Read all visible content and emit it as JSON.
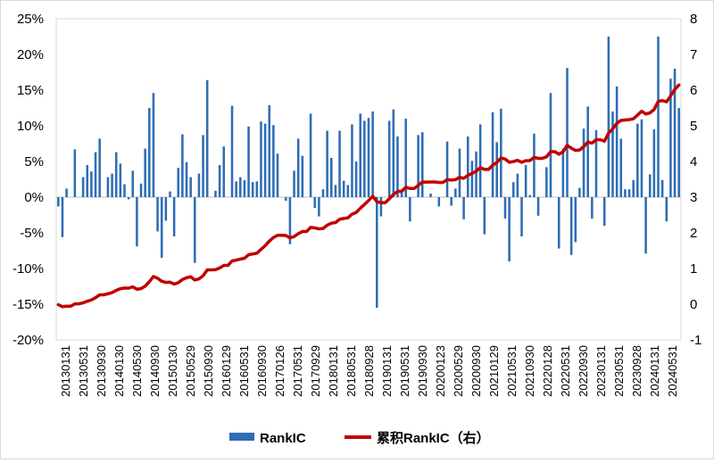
{
  "chart_data": {
    "type": "bar+line",
    "left_axis": {
      "range": [
        -0.2,
        0.25
      ],
      "ticks": [
        "25%",
        "20%",
        "15%",
        "10%",
        "5%",
        "0%",
        "-5%",
        "-10%",
        "-15%",
        "-20%"
      ]
    },
    "right_axis": {
      "range": [
        -1,
        8
      ],
      "ticks": [
        "8",
        "7",
        "6",
        "5",
        "4",
        "3",
        "2",
        "1",
        "0",
        "-1"
      ]
    },
    "x_tick_labels": [
      "20130131",
      "20130531",
      "20130930",
      "20140130",
      "20140530",
      "20140930",
      "20150130",
      "20150529",
      "20150930",
      "20160129",
      "20160531",
      "20160930",
      "20170126",
      "20170531",
      "20170929",
      "20180131",
      "20180531",
      "20180928",
      "20190131",
      "20190531",
      "20190930",
      "20200123",
      "20200529",
      "20200930",
      "20210129",
      "20210531",
      "20210930",
      "20220128",
      "20220531",
      "20220930",
      "20230131",
      "20230531",
      "20230928",
      "20240131",
      "20240531"
    ],
    "legend": {
      "position": "bottom",
      "items": [
        {
          "label": "RankIC",
          "color": "#2e6db4",
          "kind": "bar"
        },
        {
          "label": "累积RankIC（右）",
          "color": "#c00000",
          "kind": "line"
        }
      ]
    },
    "series": [
      {
        "name": "RankIC",
        "type": "bar",
        "axis": "left",
        "color": "#2e6db4",
        "values": [
          -0.013,
          -0.056,
          0.012,
          0.0,
          0.067,
          0.0,
          0.028,
          0.045,
          0.036,
          0.063,
          0.082,
          0.0,
          0.028,
          0.033,
          0.063,
          0.047,
          0.018,
          -0.003,
          0.037,
          -0.069,
          0.019,
          0.068,
          0.125,
          0.146,
          -0.048,
          -0.085,
          -0.033,
          0.008,
          -0.055,
          0.041,
          0.088,
          0.049,
          0.028,
          -0.092,
          0.033,
          0.087,
          0.164,
          0.0,
          0.009,
          0.045,
          0.071,
          0.0,
          0.128,
          0.022,
          0.028,
          0.024,
          0.099,
          0.021,
          0.022,
          0.106,
          0.103,
          0.129,
          0.101,
          0.061,
          0.0,
          -0.005,
          -0.066,
          0.037,
          0.082,
          0.058,
          0.0,
          0.117,
          -0.015,
          -0.027,
          0.011,
          0.093,
          0.055,
          0.017,
          0.093,
          0.023,
          0.017,
          0.102,
          0.05,
          0.117,
          0.107,
          0.111,
          0.12,
          -0.155,
          -0.027,
          0.0,
          0.107,
          0.123,
          0.085,
          0.007,
          0.11,
          -0.034,
          0.0,
          0.087,
          0.091,
          0.0,
          0.005,
          0.0,
          -0.013,
          0.0,
          0.078,
          -0.012,
          0.012,
          0.068,
          -0.031,
          0.085,
          0.051,
          0.064,
          0.102,
          -0.052,
          0.0,
          0.119,
          0.077,
          0.124,
          -0.03,
          -0.09,
          0.021,
          0.033,
          -0.055,
          0.045,
          0.003,
          0.089,
          -0.026,
          0.0,
          0.042,
          0.146,
          0.0,
          -0.072,
          0.068,
          0.181,
          -0.081,
          -0.063,
          0.013,
          0.096,
          0.127,
          -0.03,
          0.094,
          0.0,
          -0.04,
          0.225,
          0.12,
          0.155,
          0.082,
          0.011,
          0.011,
          0.024,
          0.103,
          0.109,
          -0.079,
          0.032,
          0.095,
          0.225,
          0.024,
          -0.034,
          0.166,
          0.18,
          0.125
        ]
      },
      {
        "name": "累积RankIC（右）",
        "type": "line",
        "axis": "right",
        "color": "#c00000",
        "values": [
          -0.013,
          -0.069,
          -0.057,
          -0.057,
          0.01,
          0.01,
          0.038,
          0.083,
          0.119,
          0.182,
          0.264,
          0.264,
          0.292,
          0.325,
          0.388,
          0.435,
          0.453,
          0.45,
          0.487,
          0.418,
          0.437,
          0.505,
          0.63,
          0.776,
          0.728,
          0.643,
          0.61,
          0.618,
          0.563,
          0.604,
          0.692,
          0.741,
          0.769,
          0.677,
          0.71,
          0.797,
          0.961,
          0.961,
          0.97,
          1.015,
          1.086,
          1.086,
          1.214,
          1.236,
          1.264,
          1.288,
          1.387,
          1.408,
          1.43,
          1.536,
          1.639,
          1.768,
          1.869,
          1.93,
          1.93,
          1.925,
          1.859,
          1.896,
          1.978,
          2.036,
          2.036,
          2.153,
          2.138,
          2.111,
          2.122,
          2.215,
          2.27,
          2.287,
          2.38,
          2.403,
          2.42,
          2.522,
          2.572,
          2.689,
          2.796,
          2.907,
          3.027,
          2.872,
          2.845,
          2.845,
          2.952,
          3.075,
          3.16,
          3.167,
          3.277,
          3.243,
          3.243,
          3.33,
          3.421,
          3.421,
          3.426,
          3.426,
          3.413,
          3.413,
          3.491,
          3.479,
          3.491,
          3.559,
          3.528,
          3.613,
          3.664,
          3.728,
          3.83,
          3.778,
          3.778,
          3.897,
          3.974,
          4.098,
          4.068,
          3.978,
          3.999,
          4.032,
          3.977,
          4.022,
          4.025,
          4.114,
          4.088,
          4.088,
          4.13,
          4.276,
          4.276,
          4.204,
          4.272,
          4.453,
          4.372,
          4.309,
          4.322,
          4.418,
          4.545,
          4.515,
          4.609,
          4.609,
          4.569,
          4.794,
          4.914,
          5.069,
          5.151,
          5.162,
          5.173,
          5.197,
          5.3,
          5.409,
          5.33,
          5.362,
          5.457,
          5.682,
          5.706,
          5.672,
          5.838,
          6.018,
          6.143
        ]
      }
    ]
  }
}
